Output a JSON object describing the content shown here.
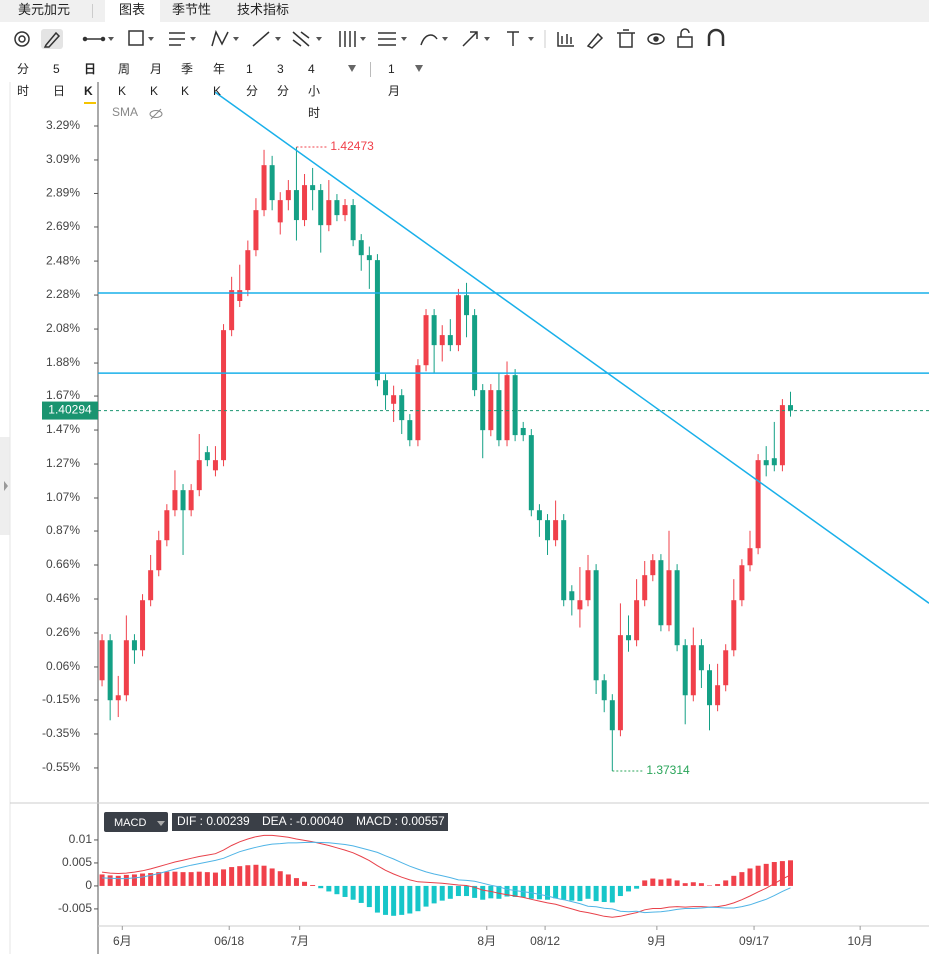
{
  "header": {
    "tabs": [
      "美元加元",
      "图表",
      "季节性",
      "技术指标"
    ],
    "active_tab": 1,
    "periods": [
      "分时",
      "5日",
      "日K",
      "周K",
      "月K",
      "季K",
      "年K",
      "1分",
      "3分",
      "4小时"
    ],
    "active_period": 2,
    "range": "1月"
  },
  "chart_data": [
    {
      "type": "candlestick",
      "indicator": "SMA",
      "up_color": "#f0404a",
      "down_color": "#14a085",
      "xlim": [
        -0.5,
        102.1
      ],
      "ylim": [
        1.37074,
        1.42928
      ],
      "yticks": [
        {
          "value": 1.42647,
          "label": "3.29%"
        },
        {
          "value": 1.42366,
          "label": "3.09%"
        },
        {
          "value": 1.42089,
          "label": "2.89%"
        },
        {
          "value": 1.41812,
          "label": "2.69%"
        },
        {
          "value": 1.4153,
          "label": "2.48%"
        },
        {
          "value": 1.41249,
          "label": "2.28%"
        },
        {
          "value": 1.40968,
          "label": "2.08%"
        },
        {
          "value": 1.40687,
          "label": "1.88%"
        },
        {
          "value": 1.40414,
          "label": "1.67%"
        },
        {
          "value": 1.40133,
          "label": "1.47%"
        },
        {
          "value": 1.39852,
          "label": "1.27%"
        },
        {
          "value": 1.39571,
          "label": "1.07%"
        },
        {
          "value": 1.39298,
          "label": "0.87%"
        },
        {
          "value": 1.39017,
          "label": "0.66%"
        },
        {
          "value": 1.38736,
          "label": "0.46%"
        },
        {
          "value": 1.38455,
          "label": "0.26%"
        },
        {
          "value": 1.38174,
          "label": "0.06%"
        },
        {
          "value": 1.37901,
          "label": "-0.15%"
        },
        {
          "value": 1.3762,
          "label": "-0.35%"
        },
        {
          "value": 1.37339,
          "label": "-0.55%"
        }
      ],
      "xticks": [
        {
          "value": 2.5,
          "label": "6月"
        },
        {
          "value": 15.7,
          "label": "06/18"
        },
        {
          "value": 24.4,
          "label": "7月"
        },
        {
          "value": 47.5,
          "label": "8月"
        },
        {
          "value": 54.7,
          "label": "08/12"
        },
        {
          "value": 68.5,
          "label": "9月"
        },
        {
          "value": 80.5,
          "label": "09/17"
        },
        {
          "value": 93.6,
          "label": "10月"
        }
      ],
      "open": [
        1.38064,
        1.38395,
        1.37899,
        1.3794,
        1.38395,
        1.38312,
        1.38726,
        1.38974,
        1.39222,
        1.3947,
        1.39636,
        1.3947,
        1.39636,
        1.3995,
        1.398,
        1.39884,
        1.40959,
        1.412,
        1.4129,
        1.4162,
        1.41951,
        1.42323,
        1.4185,
        1.42034,
        1.42117,
        1.41869,
        1.42158,
        1.42117,
        1.41827,
        1.42034,
        1.4191,
        1.41993,
        1.41703,
        1.41579,
        1.41538,
        1.40545,
        1.4035,
        1.40421,
        1.40215,
        1.40049,
        1.40669,
        1.41083,
        1.40835,
        1.40918,
        1.40835,
        1.41248,
        1.41083,
        1.40463,
        1.40132,
        1.40463,
        1.40049,
        1.40587,
        1.4015,
        1.40091,
        1.3947,
        1.39388,
        1.39222,
        1.39388,
        1.388,
        1.3865,
        1.38726,
        1.38974,
        1.38064,
        1.37899,
        1.37651,
        1.38437,
        1.38395,
        1.38726,
        1.38933,
        1.39057,
        1.38519,
        1.38974,
        1.38354,
        1.3794,
        1.38354,
        1.38147,
        1.37858,
        1.38023,
        1.38312,
        1.38726,
        1.39015,
        1.39156,
        1.39884,
        1.399,
        1.39842,
        1.40339
      ],
      "high": [
        1.38445,
        1.38445,
        1.381,
        1.386,
        1.38445,
        1.38776,
        1.391,
        1.393,
        1.3952,
        1.398,
        1.39686,
        1.39686,
        1.401,
        1.4,
        1.4,
        1.41009,
        1.414,
        1.415,
        1.417,
        1.4205,
        1.4245,
        1.424,
        1.421,
        1.422,
        1.42473,
        1.4225,
        1.423,
        1.42167,
        1.422,
        1.42084,
        1.42043,
        1.42043,
        1.41753,
        1.4165,
        1.41588,
        1.40595,
        1.405,
        1.40471,
        1.40265,
        1.40719,
        1.41133,
        1.41133,
        1.41,
        1.4105,
        1.413,
        1.4135,
        1.41133,
        1.40513,
        1.40513,
        1.406,
        1.407,
        1.40637,
        1.402,
        1.40141,
        1.3952,
        1.39438,
        1.3955,
        1.39438,
        1.3885,
        1.39,
        1.391,
        1.39024,
        1.38114,
        1.37949,
        1.387,
        1.386,
        1.389,
        1.3905,
        1.39107,
        1.39107,
        1.393,
        1.39024,
        1.38404,
        1.385,
        1.38404,
        1.38197,
        1.382,
        1.38362,
        1.389,
        1.39065,
        1.393,
        1.39934,
        1.4,
        1.402,
        1.40389,
        1.4045
      ],
      "low": [
        1.38014,
        1.37733,
        1.3776,
        1.3789,
        1.382,
        1.38262,
        1.38676,
        1.38924,
        1.39172,
        1.3942,
        1.391,
        1.3942,
        1.39586,
        1.39834,
        1.3975,
        1.39834,
        1.40909,
        1.4115,
        1.4124,
        1.4157,
        1.41901,
        1.4195,
        1.4175,
        1.4195,
        1.417,
        1.41819,
        1.4195,
        1.416,
        1.41777,
        1.4186,
        1.4186,
        1.41653,
        1.4145,
        1.413,
        1.40495,
        1.403,
        1.402,
        1.401,
        1.39999,
        1.39999,
        1.40619,
        1.406,
        1.407,
        1.40785,
        1.40785,
        1.409,
        1.40413,
        1.399,
        1.40082,
        1.39999,
        1.39999,
        1.40041,
        1.40041,
        1.3942,
        1.3925,
        1.391,
        1.39172,
        1.38676,
        1.386,
        1.385,
        1.38676,
        1.3795,
        1.378,
        1.37314,
        1.37601,
        1.383,
        1.38345,
        1.38676,
        1.38883,
        1.38469,
        1.38469,
        1.38304,
        1.377,
        1.3789,
        1.38,
        1.3765,
        1.37808,
        1.37973,
        1.38262,
        1.38676,
        1.38965,
        1.39106,
        1.3975,
        1.39792,
        1.39792,
        1.40244
      ],
      "close": [
        1.38395,
        1.37899,
        1.3794,
        1.38395,
        1.38312,
        1.38726,
        1.38974,
        1.39222,
        1.3947,
        1.39636,
        1.3947,
        1.39636,
        1.39884,
        1.39884,
        1.39884,
        1.40959,
        1.4129,
        1.4129,
        1.4162,
        1.41951,
        1.42323,
        1.42034,
        1.42034,
        1.42117,
        1.41869,
        1.42158,
        1.42117,
        1.41827,
        1.42034,
        1.4191,
        1.41993,
        1.41703,
        1.41579,
        1.41538,
        1.40545,
        1.40421,
        1.40421,
        1.40215,
        1.40049,
        1.40669,
        1.41083,
        1.40835,
        1.40918,
        1.40835,
        1.41248,
        1.41083,
        1.40463,
        1.40132,
        1.40463,
        1.40049,
        1.40587,
        1.40091,
        1.40091,
        1.3947,
        1.39388,
        1.39222,
        1.39388,
        1.38726,
        1.38726,
        1.38726,
        1.38974,
        1.38064,
        1.37899,
        1.37651,
        1.38437,
        1.38395,
        1.38726,
        1.38933,
        1.39057,
        1.38519,
        1.38974,
        1.38354,
        1.3794,
        1.38354,
        1.38147,
        1.37858,
        1.38023,
        1.38312,
        1.38726,
        1.39015,
        1.39156,
        1.39884,
        1.39842,
        1.39842,
        1.40339,
        1.40294
      ],
      "hlines": [
        {
          "value": 1.41266,
          "color": "#19b0ea"
        },
        {
          "value": 1.40604,
          "color": "#19b0ea"
        }
      ],
      "trendline": {
        "color": "#19b0ea",
        "points": [
          [
            13.95,
            1.42927
          ],
          [
            102.1,
            1.38701
          ]
        ]
      },
      "last_price": {
        "value": 1.40294,
        "label": "1.40294",
        "color": "#1a9470"
      },
      "annotations": [
        {
          "index": 24,
          "value": 1.42473,
          "label": "1.42473",
          "color": "#f0404a"
        },
        {
          "index": 63,
          "value": 1.37314,
          "label": "1.37314",
          "color": "#2aa55a"
        }
      ]
    },
    {
      "type": "macd",
      "button": "MACD",
      "legend": [
        "DIF : 0.00239",
        "DEA : -0.00040",
        "MACD : 0.00557"
      ],
      "ylim": [
        -0.0085,
        0.0126
      ],
      "yticks": [
        0.01,
        0.005,
        0,
        -0.005
      ],
      "up_color": "#f0404a",
      "down_color": "#17c6c9",
      "dif": {
        "color": "#e8414a",
        "values": [
          0.003,
          0.0028,
          0.0027,
          0.0028,
          0.003,
          0.0033,
          0.0037,
          0.0042,
          0.0047,
          0.0052,
          0.0056,
          0.006,
          0.0064,
          0.0067,
          0.007,
          0.0078,
          0.0088,
          0.0096,
          0.0102,
          0.0107,
          0.011,
          0.011,
          0.0108,
          0.0106,
          0.0102,
          0.0099,
          0.0096,
          0.0092,
          0.0088,
          0.0083,
          0.0078,
          0.0072,
          0.0064,
          0.0055,
          0.0044,
          0.0034,
          0.0026,
          0.0019,
          0.0013,
          0.0009,
          0.0008,
          0.0007,
          0.0006,
          0.0004,
          0.0002,
          0.0001,
          -0.0003,
          -0.0009,
          -0.0012,
          -0.0016,
          -0.0019,
          -0.0022,
          -0.0025,
          -0.0029,
          -0.0033,
          -0.0037,
          -0.004,
          -0.0045,
          -0.005,
          -0.0055,
          -0.0058,
          -0.0062,
          -0.0066,
          -0.0068,
          -0.0066,
          -0.0062,
          -0.0058,
          -0.0052,
          -0.0049,
          -0.0049,
          -0.0046,
          -0.0045,
          -0.0046,
          -0.0045,
          -0.0045,
          -0.0046,
          -0.0045,
          -0.0042,
          -0.0037,
          -0.003,
          -0.0022,
          -0.0013,
          -0.0005,
          0.0005,
          0.0015,
          0.00239
        ]
      },
      "dea": {
        "color": "#4fb4e6",
        "values": [
          0.00175,
          0.00165,
          0.0016,
          0.0016,
          0.00175,
          0.00195,
          0.0023,
          0.0027,
          0.00315,
          0.00365,
          0.0041,
          0.0045,
          0.00485,
          0.0052,
          0.00555,
          0.006,
          0.00675,
          0.00745,
          0.00795,
          0.0084,
          0.0088,
          0.0091,
          0.0092,
          0.00935,
          0.00935,
          0.00945,
          0.0095,
          0.00945,
          0.0094,
          0.0092,
          0.009,
          0.0087,
          0.00825,
          0.0078,
          0.0073,
          0.00655,
          0.00585,
          0.00505,
          0.0043,
          0.00365,
          0.00305,
          0.0026,
          0.0022,
          0.0018,
          0.0013,
          0.0012,
          0.001,
          0.0006,
          0.00015,
          -0.0002,
          -0.00075,
          -0.001,
          -0.00125,
          -0.0015,
          -0.00185,
          -0.0022,
          -0.00265,
          -0.003,
          -0.0034,
          -0.00385,
          -0.0044,
          -0.00455,
          -0.00485,
          -0.005,
          -0.0055,
          -0.0056,
          -0.0055,
          -0.0058,
          -0.0057,
          -0.0056,
          -0.0054,
          -0.0051,
          -0.0049,
          -0.0049,
          -0.0048,
          -0.00465,
          -0.0047,
          -0.0048,
          -0.0048,
          -0.0045,
          -0.0041,
          -0.0035,
          -0.0029,
          -0.0021,
          -0.0012,
          -0.0004
        ]
      },
      "macd": {
        "values": [
          0.0025,
          0.0023,
          0.0022,
          0.0024,
          0.0025,
          0.0027,
          0.0028,
          0.003,
          0.0031,
          0.0031,
          0.003,
          0.003,
          0.0031,
          0.003,
          0.0029,
          0.0036,
          0.0041,
          0.0043,
          0.0045,
          0.0046,
          0.0044,
          0.0038,
          0.0032,
          0.0025,
          0.0017,
          0.0009,
          0.0002,
          -0.0005,
          -0.0012,
          -0.0018,
          -0.0024,
          -0.003,
          -0.0037,
          -0.0046,
          -0.0058,
          -0.0063,
          -0.0065,
          -0.0063,
          -0.006,
          -0.0055,
          -0.0045,
          -0.0038,
          -0.0032,
          -0.0028,
          -0.0022,
          -0.0022,
          -0.0026,
          -0.003,
          -0.0027,
          -0.0028,
          -0.0023,
          -0.0024,
          -0.0025,
          -0.0028,
          -0.0029,
          -0.003,
          -0.0027,
          -0.003,
          -0.0032,
          -0.0033,
          -0.0028,
          -0.0033,
          -0.0035,
          -0.0036,
          -0.0022,
          -0.0012,
          -0.0006,
          0.0012,
          0.0016,
          0.0014,
          0.0016,
          0.0012,
          0.0006,
          0.0008,
          0.0006,
          0.0001,
          0.0004,
          0.0012,
          0.0022,
          0.003,
          0.0038,
          0.0044,
          0.0048,
          0.0052,
          0.0054,
          0.00557
        ]
      }
    }
  ]
}
